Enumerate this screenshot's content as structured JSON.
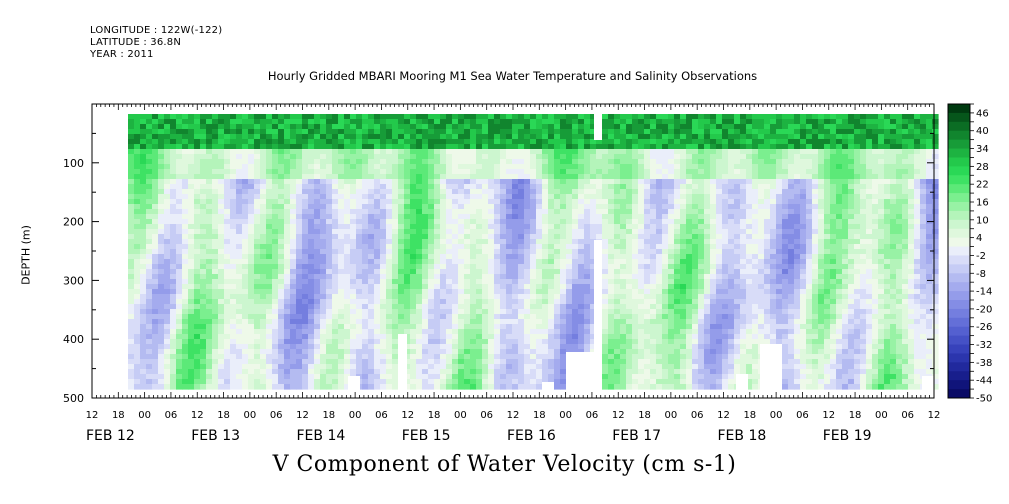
{
  "header": {
    "longitude": "LONGITUDE : 122W(-122)",
    "latitude": "LATITUDE : 36.8N",
    "year": "YEAR : 2011"
  },
  "chart_data": {
    "type": "heatmap",
    "title": "Hourly Gridded MBARI Mooring M1 Sea Water Temperature and Salinity Observations",
    "xlabel": "V Component of Water Velocity (cm s-1)",
    "ylabel": "DEPTH (m)",
    "ylim": [
      500,
      0
    ],
    "y_ticks": [
      "100",
      "200",
      "300",
      "400",
      "500"
    ],
    "x_hour_ticks": [
      "12",
      "18",
      "00",
      "06",
      "12",
      "18",
      "00",
      "06",
      "12",
      "18",
      "00",
      "06",
      "12",
      "18",
      "00",
      "06",
      "12",
      "18",
      "00",
      "06",
      "12",
      "18",
      "00",
      "06",
      "12",
      "18",
      "00",
      "06",
      "12",
      "18",
      "00",
      "06",
      "12"
    ],
    "x_date_labels": [
      {
        "label": "FEB 12",
        "hour_index": 0
      },
      {
        "label": "FEB 13",
        "hour_index": 4
      },
      {
        "label": "FEB 14",
        "hour_index": 8
      },
      {
        "label": "FEB 15",
        "hour_index": 12
      },
      {
        "label": "FEB 16",
        "hour_index": 16
      },
      {
        "label": "FEB 17",
        "hour_index": 20
      },
      {
        "label": "FEB 18",
        "hour_index": 24
      },
      {
        "label": "FEB 19",
        "hour_index": 28
      }
    ],
    "colorbar": {
      "labels": [
        "46",
        "40",
        "34",
        "28",
        "22",
        "16",
        "10",
        "4",
        "-2",
        "-8",
        "-14",
        "-20",
        "-26",
        "-32",
        "-38",
        "-44",
        "-50"
      ],
      "levels": [
        49,
        46,
        43,
        40,
        37,
        34,
        31,
        28,
        25,
        22,
        19,
        16,
        13,
        10,
        7,
        4,
        1,
        -2,
        -5,
        -8,
        -11,
        -14,
        -17,
        -20,
        -23,
        -26,
        -29,
        -32,
        -35,
        -38,
        -41,
        -44,
        -47,
        -50
      ],
      "colors": [
        "#003a10",
        "#06561b",
        "#0b6d24",
        "#11852e",
        "#179c38",
        "#1db341",
        "#23c94b",
        "#2ad856",
        "#3ee264",
        "#5ce978",
        "#7bef8f",
        "#98f2a5",
        "#b4f4ba",
        "#ccf6cf",
        "#dff8dd",
        "#eef9e9",
        "#eaeefa",
        "#d8dcf8",
        "#c6ccf5",
        "#b4bbf1",
        "#a4abee",
        "#949cea",
        "#848de5",
        "#747edf",
        "#646fd8",
        "#5460d0",
        "#4551c6",
        "#3742bb",
        "#2b35ad",
        "#21299d",
        "#181e8c",
        "#10147a",
        "#0a0b66"
      ]
    },
    "value_range": [
      -50,
      46
    ],
    "grid": false
  }
}
